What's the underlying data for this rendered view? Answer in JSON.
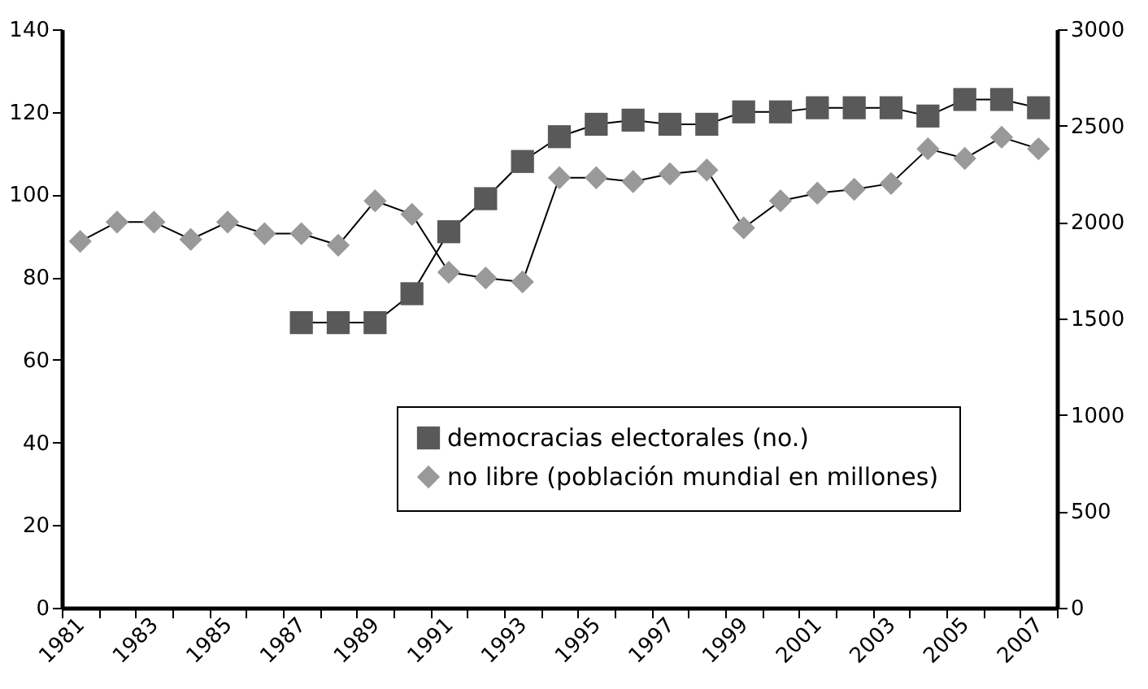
{
  "chart_data": {
    "type": "line",
    "categories": [
      "1981",
      null,
      "1983",
      null,
      "1985",
      null,
      "1987",
      null,
      "1989",
      null,
      "1991",
      null,
      "1993",
      null,
      "1995",
      null,
      "1997",
      null,
      "1999",
      null,
      "2001",
      null,
      "2003",
      null,
      "2005",
      null,
      "2007"
    ],
    "series": [
      {
        "name": "democracias electorales (no.)",
        "color": "#595959",
        "marker": "square",
        "values": [
          null,
          null,
          null,
          null,
          null,
          null,
          69,
          69,
          69,
          76,
          91,
          99,
          108,
          114,
          117,
          118,
          117,
          117,
          120,
          120,
          121,
          121,
          121,
          119,
          123,
          123,
          121
        ]
      },
      {
        "name": "no libre (población mundial en millones)",
        "color": "#999999",
        "marker": "diamond",
        "axis": "y2",
        "values": [
          1900,
          2000,
          2000,
          1910,
          2000,
          1940,
          1940,
          1880,
          2110,
          2040,
          1740,
          1710,
          1690,
          2230,
          2230,
          2210,
          2250,
          2270,
          1970,
          2110,
          2150,
          2170,
          2200,
          2380,
          2330,
          2440,
          2380
        ]
      }
    ],
    "ylim": [
      0,
      140
    ],
    "yticks": [
      0,
      20,
      40,
      60,
      80,
      100,
      120,
      140
    ],
    "y2lim": [
      0,
      3000
    ],
    "y2ticks": [
      0,
      500,
      1000,
      1500,
      2000,
      2500,
      3000
    ],
    "grid": false,
    "legend": "bottom right"
  }
}
